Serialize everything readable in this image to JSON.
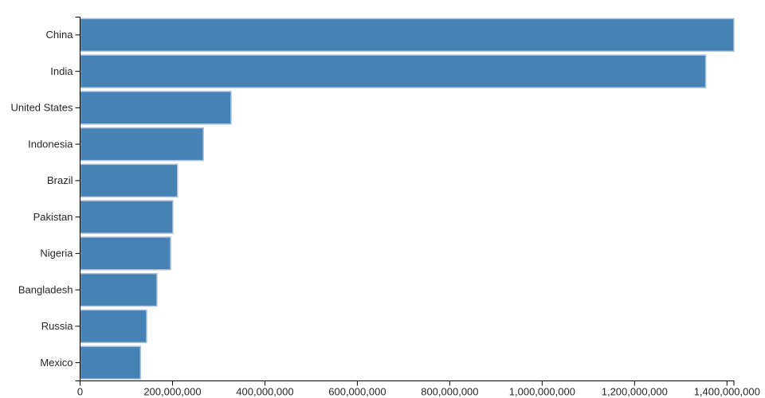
{
  "chart_data": {
    "type": "bar",
    "orientation": "horizontal",
    "title": "",
    "xlabel": "",
    "ylabel": "",
    "categories": [
      "China",
      "India",
      "United States",
      "Indonesia",
      "Brazil",
      "Pakistan",
      "Nigeria",
      "Bangladesh",
      "Russia",
      "Mexico"
    ],
    "values": [
      1415045928,
      1354051854,
      326766748,
      266794980,
      210867954,
      200813818,
      195875237,
      166368149,
      143964709,
      130759074
    ],
    "xlim": [
      0,
      1415045928
    ],
    "x_tick_interval": 200000000,
    "x_tick_values": [
      0,
      200000000,
      400000000,
      600000000,
      800000000,
      1000000000,
      1200000000,
      1400000000
    ],
    "x_tick_labels": [
      "0",
      "200,000,000",
      "400,000,000",
      "600,000,000",
      "800,000,000",
      "1,000,000,000",
      "1,200,000,000",
      "1,400,000,000"
    ],
    "grid": false,
    "legend": false,
    "bar_color": "#4682B4",
    "bar_stroke_color": "#B0C4DE",
    "axis_color": "#000000",
    "text_color": "#262626"
  }
}
